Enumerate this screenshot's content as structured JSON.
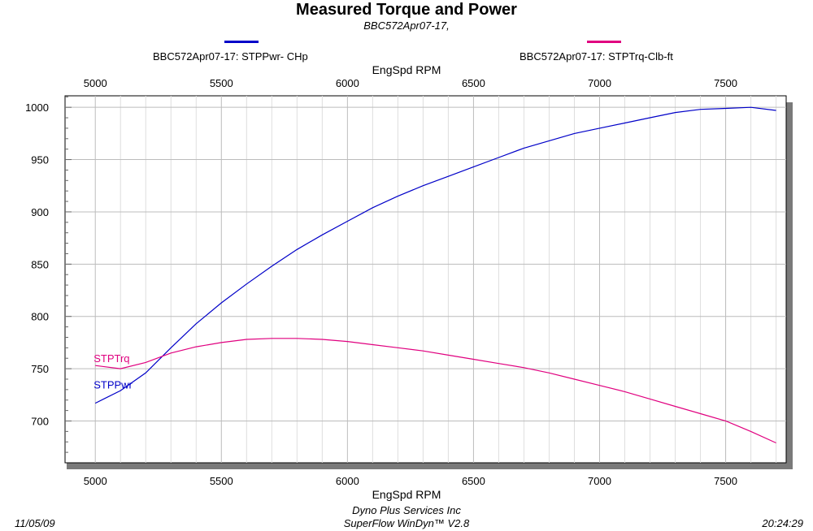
{
  "header": {
    "title": "Measured Torque and Power",
    "subtitle": "BBC572Apr07-17,"
  },
  "legend": [
    {
      "label": "BBC572Apr07-17: STPPwr- CHp",
      "color": "#0000c8"
    },
    {
      "label": "BBC572Apr07-17: STPTrq-Clb-ft",
      "color": "#e0007f"
    }
  ],
  "footer": {
    "date": "11/05/09",
    "company": "Dyno Plus Services Inc",
    "software": "SuperFlow WinDyn™ V2.8",
    "time": "20:24:29"
  },
  "chart_data": {
    "type": "line",
    "title": "Measured Torque and Power",
    "subtitle": "BBC572Apr07-17,",
    "xlabel_top": "EngSpd  RPM",
    "xlabel_bottom": "EngSpd  RPM",
    "ylabel": "",
    "xlim": [
      4880,
      7740
    ],
    "ylim": [
      660,
      1011
    ],
    "xticks": [
      5000,
      5500,
      6000,
      6500,
      7000,
      7500
    ],
    "yticks": [
      700,
      750,
      800,
      850,
      900,
      950,
      1000
    ],
    "grid": true,
    "legend_position": "top",
    "x": [
      5000,
      5100,
      5200,
      5300,
      5400,
      5500,
      5600,
      5700,
      5800,
      5900,
      6000,
      6100,
      6200,
      6300,
      6400,
      6500,
      6600,
      6700,
      6800,
      6900,
      7000,
      7100,
      7200,
      7300,
      7400,
      7500,
      7600,
      7700
    ],
    "series": [
      {
        "name": "BBC572Apr07-17: STPPwr- CHp",
        "short_label": "STPPwr",
        "color": "#0000c8",
        "values": [
          717,
          729,
          746,
          770,
          793,
          813,
          831,
          848,
          864,
          878,
          891,
          904,
          915,
          925,
          934,
          943,
          952,
          961,
          968,
          975,
          980,
          985,
          990,
          995,
          998,
          999,
          1000,
          997
        ]
      },
      {
        "name": "BBC572Apr07-17: STPTrq-Clb-ft",
        "short_label": "STPTrq",
        "color": "#e0007f",
        "values": [
          753,
          750,
          756,
          765,
          771,
          775,
          778,
          779,
          779,
          778,
          776,
          773,
          770,
          767,
          763,
          759,
          755,
          751,
          746,
          740,
          734,
          728,
          721,
          714,
          707,
          700,
          690,
          679
        ]
      }
    ]
  }
}
